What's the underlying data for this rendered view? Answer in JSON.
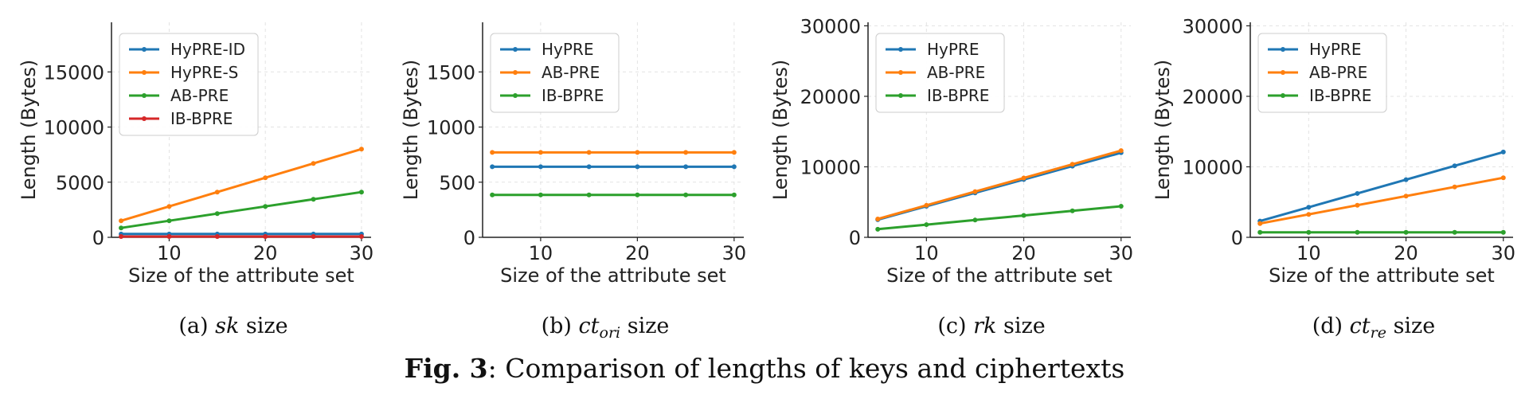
{
  "chart_data": [
    {
      "type": "line",
      "xlabel": "Size of the attribute set",
      "ylabel": "Length (Bytes)",
      "xlim": [
        4,
        31
      ],
      "ylim": [
        0,
        19500
      ],
      "xticks": [
        10,
        20,
        30
      ],
      "yticks": [
        0,
        5000,
        10000,
        15000
      ],
      "grid": true,
      "legend_position": "top-left",
      "x": [
        5,
        10,
        15,
        20,
        25,
        30
      ],
      "series": [
        {
          "name": "HyPRE-ID",
          "color": "#1f77b4",
          "values": [
            300,
            300,
            300,
            300,
            300,
            300
          ]
        },
        {
          "name": "HyPRE-S",
          "color": "#ff7f0e",
          "values": [
            1500,
            2800,
            4100,
            5400,
            6700,
            8000
          ]
        },
        {
          "name": "AB-PRE",
          "color": "#2ca02c",
          "values": [
            850,
            1500,
            2150,
            2800,
            3450,
            4100
          ]
        },
        {
          "name": "IB-BPRE",
          "color": "#d62728",
          "values": [
            70,
            70,
            70,
            70,
            70,
            70
          ]
        }
      ],
      "caption_label": "(a)",
      "caption_math": "sk",
      "caption_sub": "",
      "caption_word": "size"
    },
    {
      "type": "line",
      "xlabel": "Size of the attribute set",
      "ylabel": "Length (Bytes)",
      "xlim": [
        4,
        31
      ],
      "ylim": [
        0,
        1950
      ],
      "xticks": [
        10,
        20,
        30
      ],
      "yticks": [
        0,
        500,
        1000,
        1500
      ],
      "grid": true,
      "legend_position": "top-left",
      "x": [
        5,
        10,
        15,
        20,
        25,
        30
      ],
      "series": [
        {
          "name": "HyPRE",
          "color": "#1f77b4",
          "values": [
            640,
            640,
            640,
            640,
            640,
            640
          ]
        },
        {
          "name": "AB-PRE",
          "color": "#ff7f0e",
          "values": [
            770,
            770,
            770,
            770,
            770,
            770
          ]
        },
        {
          "name": "IB-BPRE",
          "color": "#2ca02c",
          "values": [
            385,
            385,
            385,
            385,
            385,
            385
          ]
        }
      ],
      "caption_label": "(b)",
      "caption_math": "ct",
      "caption_sub": "ori",
      "caption_word": "size"
    },
    {
      "type": "line",
      "xlabel": "Size of the attribute set",
      "ylabel": "Length (Bytes)",
      "xlim": [
        4,
        31
      ],
      "ylim": [
        0,
        30500
      ],
      "xticks": [
        10,
        20,
        30
      ],
      "yticks": [
        0,
        10000,
        20000,
        30000
      ],
      "grid": true,
      "legend_position": "top-left",
      "x": [
        5,
        10,
        15,
        20,
        25,
        30
      ],
      "series": [
        {
          "name": "HyPRE",
          "color": "#1f77b4",
          "values": [
            2500,
            4400,
            6300,
            8200,
            10100,
            12000
          ]
        },
        {
          "name": "AB-PRE",
          "color": "#ff7f0e",
          "values": [
            2600,
            4540,
            6480,
            8420,
            10360,
            12300
          ]
        },
        {
          "name": "IB-BPRE",
          "color": "#2ca02c",
          "values": [
            1150,
            1800,
            2450,
            3100,
            3750,
            4400
          ]
        }
      ],
      "caption_label": "(c)",
      "caption_math": "rk",
      "caption_sub": "",
      "caption_word": "size"
    },
    {
      "type": "line",
      "xlabel": "Size of the attribute set",
      "ylabel": "Length (Bytes)",
      "xlim": [
        4,
        31
      ],
      "ylim": [
        0,
        30500
      ],
      "xticks": [
        10,
        20,
        30
      ],
      "yticks": [
        0,
        10000,
        20000,
        30000
      ],
      "grid": true,
      "legend_position": "top-left",
      "x": [
        5,
        10,
        15,
        20,
        25,
        30
      ],
      "series": [
        {
          "name": "HyPRE",
          "color": "#1f77b4",
          "values": [
            2300,
            4260,
            6220,
            8180,
            10140,
            12100
          ]
        },
        {
          "name": "AB-PRE",
          "color": "#ff7f0e",
          "values": [
            1950,
            3250,
            4550,
            5850,
            7150,
            8450
          ]
        },
        {
          "name": "IB-BPRE",
          "color": "#2ca02c",
          "values": [
            700,
            700,
            700,
            700,
            700,
            700
          ]
        }
      ],
      "caption_label": "(d)",
      "caption_math": "ct",
      "caption_sub": "re",
      "caption_word": "size"
    }
  ],
  "figure_caption": {
    "label": "Fig. 3",
    "text": ": Comparison of lengths of keys and ciphertexts"
  }
}
